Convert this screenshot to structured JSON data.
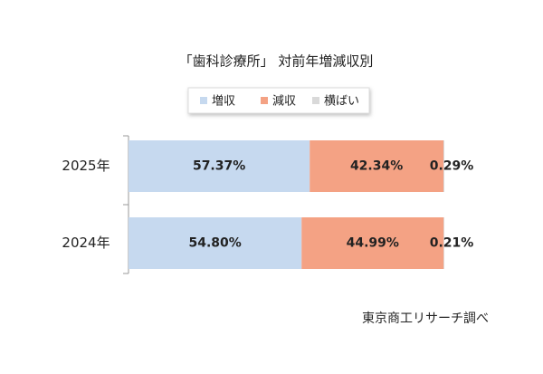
{
  "chart_data": {
    "type": "stacked-bar-horizontal",
    "title": "「歯科診療所」 対前年増減収別",
    "categories": [
      "2025年",
      "2024年"
    ],
    "series": [
      {
        "name": "増収",
        "color": "#c6d9ef",
        "values": [
          57.37,
          54.8
        ],
        "value_labels": [
          "57.37%",
          "54.80%"
        ]
      },
      {
        "name": "減収",
        "color": "#f4a284",
        "values": [
          42.34,
          44.99
        ],
        "value_labels": [
          "42.34%",
          "44.99%"
        ]
      },
      {
        "name": "横ばい",
        "color": "#d9d9d9",
        "values": [
          0.29,
          0.21
        ],
        "value_labels": [
          "0.29%",
          "0.21%"
        ]
      }
    ],
    "source": "東京商工リサーチ調べ"
  }
}
